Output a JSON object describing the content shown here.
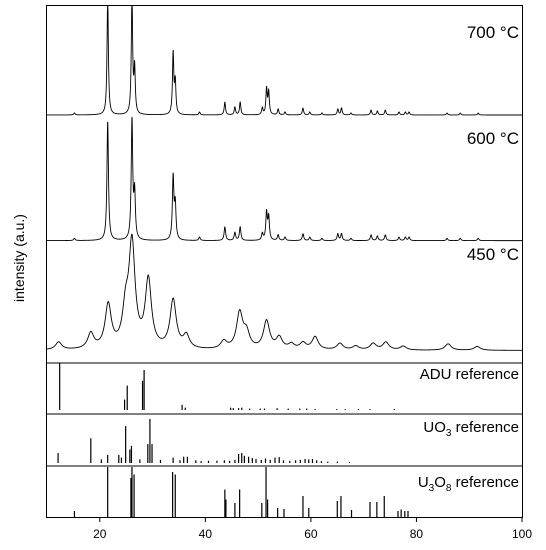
{
  "chart_data": {
    "type": "line",
    "xlabel": "",
    "ylabel": "intensity (a.u.)",
    "xlim": [
      10,
      100
    ],
    "x_ticks": [
      20,
      40,
      60,
      80,
      100
    ],
    "grid": false,
    "panels": [
      {
        "name": "700 °C",
        "kind": "pattern",
        "peaks": [
          [
            15.2,
            0.02
          ],
          [
            21.5,
            1.2
          ],
          [
            26.1,
            1.2
          ],
          [
            26.6,
            0.45
          ],
          [
            33.9,
            0.62
          ],
          [
            34.3,
            0.32
          ],
          [
            38.9,
            0.03
          ],
          [
            43.7,
            0.13
          ],
          [
            45.6,
            0.08
          ],
          [
            46.6,
            0.13
          ],
          [
            50.8,
            0.07
          ],
          [
            51.6,
            0.26
          ],
          [
            52.0,
            0.23
          ],
          [
            53.8,
            0.06
          ],
          [
            55.1,
            0.03
          ],
          [
            58.5,
            0.07
          ],
          [
            59.8,
            0.03
          ],
          [
            62.1,
            0.02
          ],
          [
            65.1,
            0.06
          ],
          [
            65.8,
            0.07
          ],
          [
            67.6,
            0.02
          ],
          [
            71.4,
            0.05
          ],
          [
            72.6,
            0.04
          ],
          [
            74.1,
            0.05
          ],
          [
            76.7,
            0.03
          ],
          [
            77.9,
            0.03
          ],
          [
            78.6,
            0.03
          ],
          [
            85.8,
            0.02
          ],
          [
            88.3,
            0.02
          ],
          [
            91.7,
            0.02
          ]
        ],
        "background": 0.01,
        "width": 0.15
      },
      {
        "name": "600 °C",
        "kind": "pattern",
        "peaks": [
          [
            15.2,
            0.02
          ],
          [
            21.5,
            1.05
          ],
          [
            26.1,
            1.05
          ],
          [
            26.6,
            0.4
          ],
          [
            33.9,
            0.55
          ],
          [
            34.3,
            0.3
          ],
          [
            38.9,
            0.03
          ],
          [
            43.7,
            0.12
          ],
          [
            45.6,
            0.07
          ],
          [
            46.6,
            0.12
          ],
          [
            50.8,
            0.06
          ],
          [
            51.6,
            0.24
          ],
          [
            52.0,
            0.2
          ],
          [
            53.8,
            0.05
          ],
          [
            55.1,
            0.03
          ],
          [
            58.5,
            0.06
          ],
          [
            59.8,
            0.03
          ],
          [
            62.1,
            0.02
          ],
          [
            65.1,
            0.06
          ],
          [
            65.8,
            0.06
          ],
          [
            67.6,
            0.02
          ],
          [
            71.4,
            0.05
          ],
          [
            72.6,
            0.04
          ],
          [
            74.1,
            0.05
          ],
          [
            76.7,
            0.03
          ],
          [
            77.9,
            0.03
          ],
          [
            78.6,
            0.03
          ],
          [
            85.8,
            0.02
          ],
          [
            88.3,
            0.02
          ],
          [
            91.7,
            0.02
          ]
        ],
        "background": 0.012,
        "width": 0.17
      },
      {
        "name": "450 °C",
        "kind": "pattern",
        "peaks": [
          [
            12.2,
            0.06
          ],
          [
            18.3,
            0.12
          ],
          [
            21.6,
            0.34
          ],
          [
            24.9,
            0.27
          ],
          [
            26.1,
            0.8
          ],
          [
            29.2,
            0.53
          ],
          [
            33.9,
            0.38
          ],
          [
            36.4,
            0.1
          ],
          [
            43.5,
            0.06
          ],
          [
            46.5,
            0.28
          ],
          [
            47.8,
            0.12
          ],
          [
            51.6,
            0.22
          ],
          [
            54.0,
            0.09
          ],
          [
            56.3,
            0.04
          ],
          [
            58.5,
            0.05
          ],
          [
            60.8,
            0.1
          ],
          [
            65.5,
            0.05
          ],
          [
            68.5,
            0.03
          ],
          [
            71.8,
            0.05
          ],
          [
            74.2,
            0.06
          ],
          [
            77.5,
            0.03
          ],
          [
            86.0,
            0.05
          ],
          [
            91.5,
            0.03
          ]
        ],
        "background": 0.02,
        "width": 0.7
      },
      {
        "name": "ADU reference",
        "kind": "sticks",
        "sticks": [
          [
            12.4,
            1.0
          ],
          [
            24.7,
            0.22
          ],
          [
            25.2,
            0.52
          ],
          [
            28.1,
            0.62
          ],
          [
            28.4,
            0.85
          ],
          [
            35.6,
            0.11
          ],
          [
            36.2,
            0.05
          ],
          [
            44.8,
            0.05
          ],
          [
            45.3,
            0.04
          ],
          [
            46.3,
            0.04
          ],
          [
            46.9,
            0.05
          ],
          [
            48.4,
            0.03
          ],
          [
            50.4,
            0.03
          ],
          [
            51.2,
            0.03
          ],
          [
            53.6,
            0.04
          ],
          [
            55.7,
            0.03
          ],
          [
            57.9,
            0.03
          ],
          [
            59.2,
            0.03
          ],
          [
            60.8,
            0.02
          ],
          [
            64.9,
            0.02
          ],
          [
            66.5,
            0.02
          ],
          [
            69.0,
            0.02
          ],
          [
            71.2,
            0.02
          ],
          [
            75.8,
            0.02
          ]
        ]
      },
      {
        "name": "UO3 reference",
        "kind": "sticks",
        "sticks": [
          [
            12.1,
            0.22
          ],
          [
            18.3,
            0.55
          ],
          [
            20.3,
            0.08
          ],
          [
            21.5,
            0.18
          ],
          [
            23.6,
            0.18
          ],
          [
            24.1,
            0.12
          ],
          [
            24.9,
            0.82
          ],
          [
            25.7,
            0.3
          ],
          [
            26.0,
            0.38
          ],
          [
            27.6,
            0.08
          ],
          [
            29.1,
            0.42
          ],
          [
            29.5,
            0.98
          ],
          [
            29.9,
            0.42
          ],
          [
            31.5,
            0.07
          ],
          [
            33.9,
            0.12
          ],
          [
            35.2,
            0.06
          ],
          [
            35.9,
            0.14
          ],
          [
            36.6,
            0.14
          ],
          [
            38.2,
            0.06
          ],
          [
            39.2,
            0.04
          ],
          [
            40.6,
            0.05
          ],
          [
            42.2,
            0.05
          ],
          [
            43.6,
            0.06
          ],
          [
            44.6,
            0.05
          ],
          [
            45.6,
            0.07
          ],
          [
            46.3,
            0.2
          ],
          [
            46.9,
            0.22
          ],
          [
            47.4,
            0.16
          ],
          [
            48.2,
            0.14
          ],
          [
            48.9,
            0.11
          ],
          [
            49.6,
            0.09
          ],
          [
            50.6,
            0.07
          ],
          [
            51.4,
            0.1
          ],
          [
            52.3,
            0.07
          ],
          [
            53.2,
            0.12
          ],
          [
            54.0,
            0.13
          ],
          [
            54.8,
            0.06
          ],
          [
            56.0,
            0.05
          ],
          [
            57.1,
            0.06
          ],
          [
            58.0,
            0.07
          ],
          [
            58.9,
            0.09
          ],
          [
            59.6,
            0.08
          ],
          [
            60.3,
            0.09
          ],
          [
            61.1,
            0.06
          ],
          [
            62.0,
            0.04
          ],
          [
            63.2,
            0.03
          ],
          [
            65.0,
            0.03
          ],
          [
            67.3,
            0.02
          ]
        ]
      },
      {
        "name": "U3O8 reference",
        "kind": "sticks",
        "sticks": [
          [
            15.2,
            0.12
          ],
          [
            21.5,
            1.0
          ],
          [
            25.9,
            0.78
          ],
          [
            26.1,
            1.0
          ],
          [
            26.5,
            0.85
          ],
          [
            33.8,
            0.9
          ],
          [
            34.3,
            0.85
          ],
          [
            43.7,
            0.55
          ],
          [
            43.9,
            0.35
          ],
          [
            45.6,
            0.28
          ],
          [
            46.5,
            0.55
          ],
          [
            50.7,
            0.28
          ],
          [
            51.5,
            1.0
          ],
          [
            51.8,
            0.35
          ],
          [
            53.7,
            0.18
          ],
          [
            54.9,
            0.16
          ],
          [
            58.5,
            0.42
          ],
          [
            59.6,
            0.18
          ],
          [
            65.0,
            0.32
          ],
          [
            65.7,
            0.42
          ],
          [
            67.7,
            0.14
          ],
          [
            71.2,
            0.3
          ],
          [
            72.5,
            0.3
          ],
          [
            73.9,
            0.42
          ],
          [
            76.5,
            0.12
          ],
          [
            77.1,
            0.15
          ],
          [
            77.8,
            0.12
          ],
          [
            78.4,
            0.12
          ]
        ]
      }
    ],
    "labels": {
      "p700": "700 °C",
      "p600": "600 °C",
      "p450": "450 °C",
      "adu": "ADU reference",
      "uo3_a": "UO",
      "uo3_sub": "3",
      "uo3_b": " reference",
      "u3o8_a": "U",
      "u3o8_sub1": "3",
      "u3o8_b": "O",
      "u3o8_sub2": "8",
      "u3o8_c": " reference"
    }
  }
}
